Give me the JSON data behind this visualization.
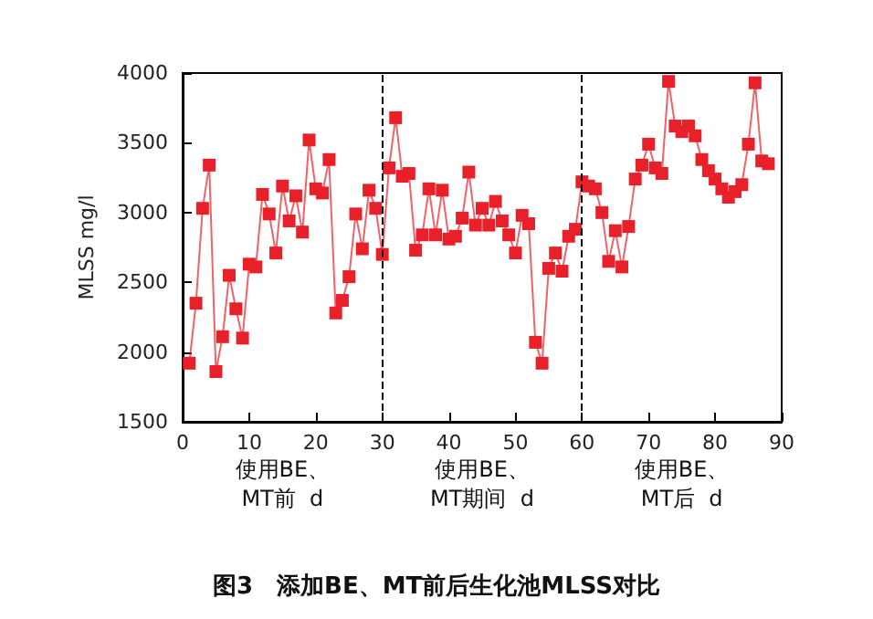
{
  "chart_data": {
    "type": "line",
    "title": "图3　添加BE、MT前后生化池MLSS对比",
    "ylabel": "MLSS mg/l",
    "annotations": [
      "使用BE、\nMT前  d",
      "使用BE、\nMT期间  d",
      "使用BE、\nMT后  d"
    ],
    "x": [
      1,
      2,
      3,
      4,
      5,
      6,
      7,
      8,
      9,
      10,
      11,
      12,
      13,
      14,
      15,
      16,
      17,
      18,
      19,
      20,
      21,
      22,
      23,
      24,
      25,
      26,
      27,
      28,
      29,
      30,
      31,
      32,
      33,
      34,
      35,
      36,
      37,
      38,
      39,
      40,
      41,
      42,
      43,
      44,
      45,
      46,
      47,
      48,
      49,
      50,
      51,
      52,
      53,
      54,
      55,
      56,
      57,
      58,
      59,
      60,
      61,
      62,
      63,
      64,
      65,
      66,
      67,
      68,
      69,
      70,
      71,
      72,
      73,
      74,
      75,
      76,
      77,
      78,
      79,
      80,
      81,
      82,
      83,
      84,
      85,
      86,
      87,
      88
    ],
    "series": [
      {
        "color": "#e8202a",
        "values": [
          1920,
          2350,
          3030,
          3340,
          1860,
          2110,
          2550,
          2310,
          2100,
          2630,
          2610,
          3130,
          2990,
          2710,
          3190,
          2940,
          3120,
          2860,
          3520,
          3170,
          3140,
          3380,
          2280,
          2370,
          2540,
          2990,
          2740,
          3160,
          3030,
          2700,
          3320,
          3680,
          3260,
          3280,
          2730,
          2840,
          3170,
          2840,
          3160,
          2810,
          2830,
          2960,
          3290,
          2910,
          3030,
          2910,
          3080,
          2940,
          2840,
          2710,
          2980,
          2920,
          2070,
          1920,
          2600,
          2710,
          2580,
          2830,
          2880,
          3220,
          3190,
          3170,
          3000,
          2650,
          2870,
          2610,
          2900,
          3240,
          3340,
          3490,
          3320,
          3280,
          3940,
          3620,
          3580,
          3620,
          3550,
          3380,
          3300,
          3240,
          3170,
          3110,
          3150,
          3200,
          3490,
          3930,
          3370,
          3350
        ]
      }
    ],
    "xlim": [
      0,
      90
    ],
    "xticks": [
      0,
      10,
      20,
      30,
      40,
      50,
      60,
      70,
      80,
      90
    ],
    "ylim": [
      1500,
      4000
    ],
    "yticks": [
      1500,
      2000,
      2500,
      3000,
      3500,
      4000
    ],
    "ref_lines": [
      {
        "axis": "x",
        "value": 30,
        "color": "#000000",
        "line_style": "dashed"
      },
      {
        "axis": "x",
        "value": 60,
        "color": "#000000",
        "line_style": "dashed"
      }
    ],
    "marker": "square",
    "line_style": "solid",
    "grid": false
  }
}
